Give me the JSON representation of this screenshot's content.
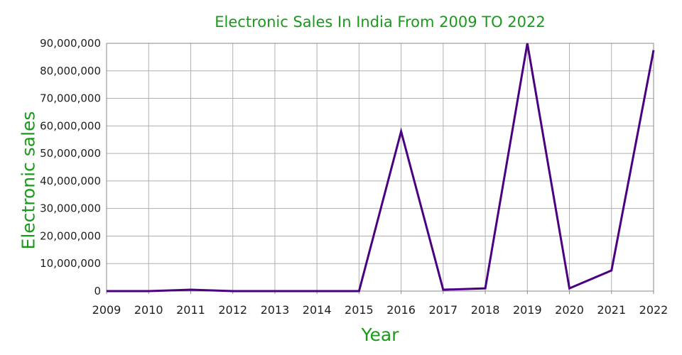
{
  "chart_data": {
    "type": "line",
    "title": "Electronic Sales In India From 2009 TO 2022",
    "xlabel": "Year",
    "ylabel": "Electronic sales",
    "x": [
      2009,
      2010,
      2011,
      2012,
      2013,
      2014,
      2015,
      2016,
      2017,
      2018,
      2019,
      2020,
      2021,
      2022
    ],
    "series": [
      {
        "name": "Electronic sales",
        "values": [
          0,
          0,
          500000,
          0,
          0,
          0,
          0,
          58000000,
          500000,
          1000000,
          90000000,
          1000000,
          7500000,
          87500000
        ]
      }
    ],
    "ylim": [
      0,
      90000000
    ],
    "ytick_step": 10000000,
    "grid": true,
    "legend": "none",
    "colors": {
      "line": "#4B0082",
      "title_text": "#1a9a1a",
      "axis_label_text": "#1a9a1a",
      "tick_text": "#1f1f1f",
      "gridline": "#b0b0b0",
      "plot_border": "#8a8a8a",
      "background": "#ffffff"
    }
  }
}
